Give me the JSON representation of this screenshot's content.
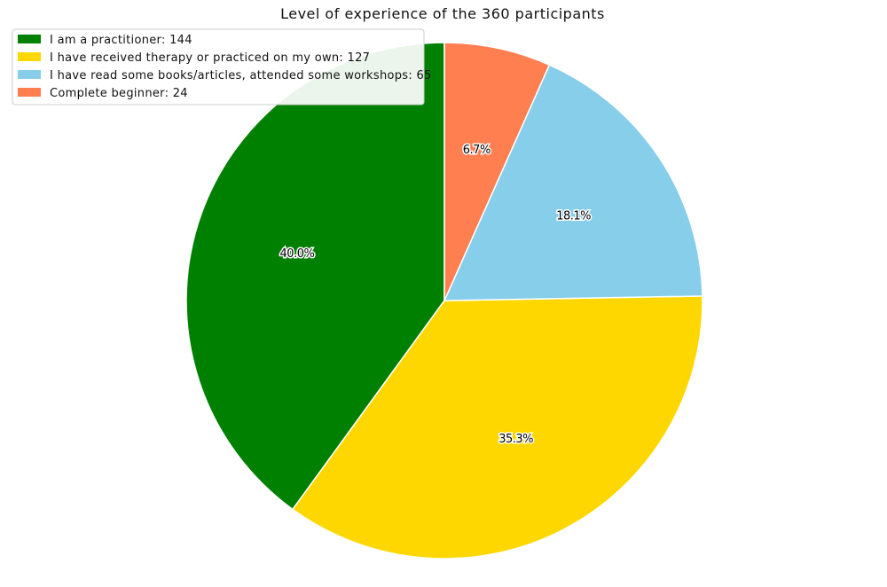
{
  "chart_data": {
    "type": "pie",
    "title": "Level of experience of the 360 participants",
    "total": 360,
    "slices": [
      {
        "label": "I am a practitioner",
        "value": 144,
        "percent": "40.0%",
        "color": "#008000"
      },
      {
        "label": "I have received therapy or practiced on my own",
        "value": 127,
        "percent": "35.3%",
        "color": "#FFD700"
      },
      {
        "label": "I have read some books/articles, attended some workshops",
        "value": 65,
        "percent": "18.1%",
        "color": "#87CEEB"
      },
      {
        "label": "Complete beginner",
        "value": 24,
        "percent": "6.7%",
        "color": "#FF7F50"
      }
    ],
    "legend_entries": [
      "I am a practitioner:  144",
      "I have received therapy or practiced on my own:  127",
      "I have read some books/articles, attended some workshops:  65",
      "Complete beginner:  24"
    ],
    "legend_placement": "top-left",
    "start_angle": "top, counterclockwise"
  }
}
